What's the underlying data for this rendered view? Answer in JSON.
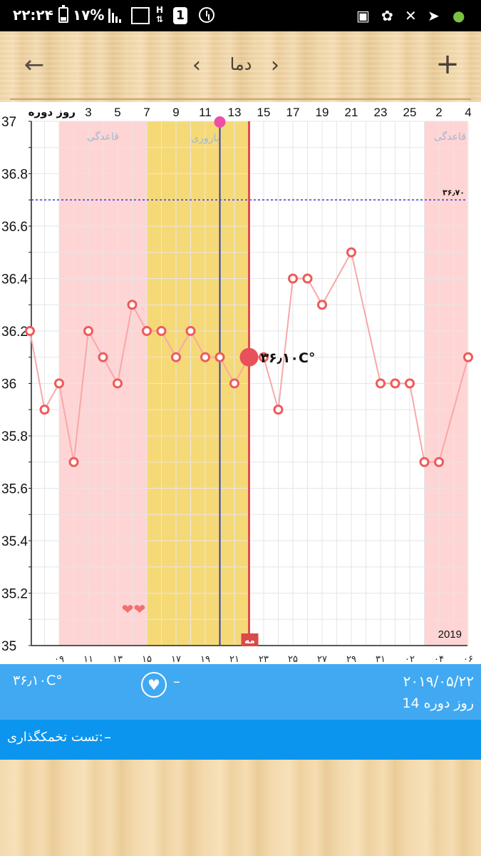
{
  "status_bar": {
    "time": "۲۲:۲۴",
    "battery": "۱۷%",
    "h_indicator": "H",
    "sim_indicator": "1"
  },
  "toolbar": {
    "title": "دما",
    "prev_symbol": "‹",
    "next_symbol": "›",
    "back_symbol": "←",
    "add_symbol": "+"
  },
  "chart_data": {
    "type": "line",
    "top_axis_label": "روز دوره",
    "top_ticks": [
      "3",
      "5",
      "7",
      "9",
      "11",
      "13",
      "15",
      "17",
      "19",
      "21",
      "23",
      "25",
      "2",
      "4"
    ],
    "bottom_ticks": [
      "۰۹",
      "۱۱",
      "۱۳",
      "۱۵",
      "۱۷",
      "۱۹",
      "۲۱",
      "۲۳",
      "۲۵",
      "۲۷",
      "۲۹",
      "۳۱",
      "۰۲",
      "۰۴",
      "۰۶"
    ],
    "y_ticks": [
      "37",
      "36.8",
      "36.6",
      "36.4",
      "36.2",
      "36",
      "35.8",
      "35.6",
      "35.4",
      "35.2",
      "35"
    ],
    "ylim": [
      35,
      37
    ],
    "series": [
      {
        "values": [
          36.2,
          35.9,
          36.0,
          35.7,
          36.2,
          36.1,
          36.0,
          36.3,
          36.2,
          36.2,
          36.1,
          36.2,
          36.1,
          36.1,
          36.0,
          36.1,
          36.1,
          35.9,
          36.4,
          36.4,
          36.3,
          null,
          36.5,
          null,
          36.0,
          36.0,
          36.0,
          35.7,
          35.7,
          null,
          36.1
        ]
      }
    ],
    "cover_line_label": "۳۶٫۷۰",
    "cover_line_value": 36.7,
    "selected_label": "۳۶٫۱۰C°",
    "selected_value": 36.1,
    "band_labels": {
      "period_1": "قاعدگی",
      "fertile": "باروری",
      "period_2": "قاعدگی"
    },
    "today_marker": "مه",
    "year_label": "2019",
    "hearts": "❤❤",
    "colors": {
      "period_band": "#ffd4d4",
      "fertile_band": "#f6d977",
      "line": "#f7a8a8",
      "point": "#ef5a5a",
      "ovulation_line": "#2e3fb5",
      "today_line": "#e24b4b",
      "cover_line": "#3b3bd6"
    }
  },
  "info": {
    "temperature": "۳۶٫۱۰C°",
    "heart_icon": "♥",
    "dash": "–",
    "date": "۲۰۱۹/۰۵/۲۲",
    "cycle_day": "روز دوره 14"
  },
  "ovulation_test": {
    "label": "تست تخمکگذاری:",
    "value": "–"
  }
}
